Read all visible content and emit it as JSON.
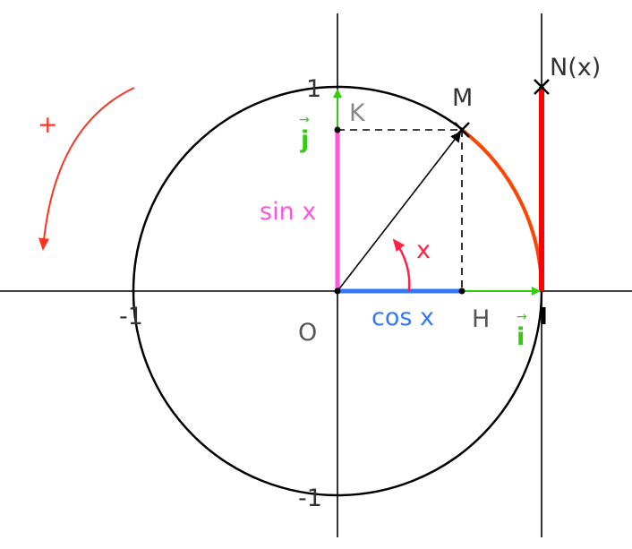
{
  "labels": {
    "origin": "O",
    "point_m": "M",
    "point_k": "K",
    "point_h": "H",
    "point_n": "N(x)",
    "sin": "sin x",
    "cos": "cos x",
    "angle": "x",
    "vector_i": "i",
    "vector_j": "j",
    "plus": "+",
    "tick_1_y": "1",
    "tick_minus1_x": "-1",
    "tick_minus1_y": "-1"
  },
  "colors": {
    "sin": "#ff55dd",
    "cos": "#3377ff",
    "vectors": "#33cc11",
    "angle": "#ff2244",
    "arc": "#ff4400",
    "tangent": "#ff0000",
    "rotation": "#ff3322"
  }
}
